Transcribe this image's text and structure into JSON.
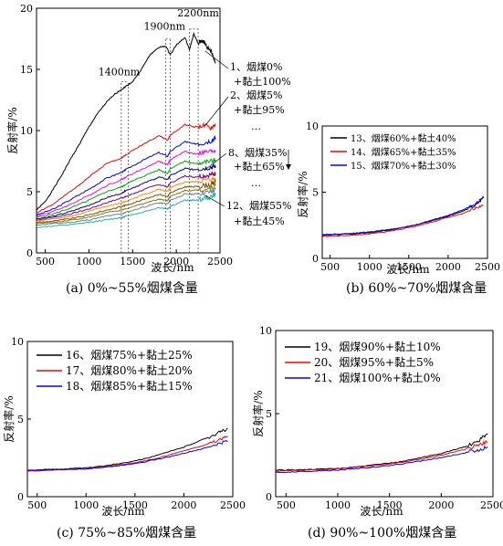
{
  "chart_data": [
    {
      "type": "line",
      "caption": "(a) 0%~55%烟煤含量",
      "xlabel": "波长/nm",
      "ylabel": "反射率/%",
      "xlim": [
        400,
        2500
      ],
      "ylim": [
        0,
        20
      ],
      "xticks": [
        500,
        1000,
        1500,
        2000,
        2500
      ],
      "yticks": [
        0,
        5,
        10,
        15,
        20
      ],
      "peak_labels": [
        "1400nm",
        "1900nm",
        "2200nm"
      ],
      "labels": [
        "1、烟煤0%",
        "+黏土100%",
        "2、烟煤5%",
        "+黏土95%",
        "…",
        "8、烟煤35%",
        "+黏土65%",
        "…",
        "12、烟煤55%",
        "+黏土45%"
      ],
      "series": [
        {
          "color": "#000000",
          "x": [
            400,
            500,
            600,
            700,
            800,
            900,
            1000,
            1100,
            1200,
            1300,
            1380,
            1420,
            1500,
            1600,
            1700,
            1800,
            1880,
            1930,
            2000,
            2100,
            2150,
            2200,
            2250,
            2300,
            2350,
            2400,
            2450
          ],
          "y": [
            3.5,
            4.2,
            5.3,
            6.5,
            7.8,
            9.0,
            10.3,
            11.4,
            12.3,
            13.0,
            13.4,
            13.6,
            14.0,
            15.0,
            16.2,
            16.8,
            16.9,
            16.2,
            17.0,
            17.6,
            16.6,
            17.9,
            17.1,
            17.4,
            16.8,
            16.5,
            15.5
          ]
        },
        {
          "color": "#ff0000",
          "x": [
            400,
            600,
            800,
            1000,
            1200,
            1380,
            1420,
            1600,
            1800,
            1900,
            1930,
            2100,
            2200,
            2300,
            2400,
            2450
          ],
          "y": [
            3.3,
            4.0,
            5.1,
            6.2,
            7.3,
            7.8,
            8.0,
            8.8,
            9.6,
            9.2,
            9.6,
            10.5,
            10.3,
            10.4,
            10.2,
            10.5
          ]
        },
        {
          "color": "#0000ff",
          "x": [
            400,
            600,
            800,
            1000,
            1200,
            1380,
            1420,
            1600,
            1800,
            1900,
            1930,
            2100,
            2200,
            2300,
            2400,
            2450
          ],
          "y": [
            3.1,
            3.6,
            4.4,
            5.2,
            6.1,
            6.6,
            6.8,
            7.5,
            8.2,
            7.9,
            8.3,
            9.1,
            8.9,
            9.0,
            9.2,
            9.4
          ]
        },
        {
          "color": "#ff00ff",
          "x": [
            400,
            600,
            800,
            1000,
            1200,
            1380,
            1420,
            1600,
            1800,
            1900,
            1930,
            2100,
            2200,
            2300,
            2400,
            2450
          ],
          "y": [
            3.0,
            3.4,
            4.0,
            4.7,
            5.5,
            6.0,
            6.2,
            6.8,
            7.5,
            7.2,
            7.6,
            8.3,
            8.1,
            8.2,
            8.3,
            8.4
          ]
        },
        {
          "color": "#00aa00",
          "x": [
            400,
            600,
            800,
            1000,
            1200,
            1380,
            1420,
            1600,
            1800,
            1900,
            1930,
            2100,
            2200,
            2300,
            2400,
            2450
          ],
          "y": [
            2.9,
            3.2,
            3.7,
            4.3,
            5.0,
            5.4,
            5.6,
            6.2,
            6.8,
            6.5,
            6.9,
            7.5,
            7.3,
            7.4,
            7.5,
            7.6
          ]
        },
        {
          "color": "#00008b",
          "x": [
            400,
            600,
            800,
            1000,
            1200,
            1380,
            1420,
            1600,
            1800,
            1900,
            1930,
            2100,
            2200,
            2300,
            2400,
            2450
          ],
          "y": [
            2.8,
            3.0,
            3.4,
            3.9,
            4.5,
            4.9,
            5.1,
            5.6,
            6.2,
            6.0,
            6.3,
            6.9,
            6.8,
            6.9,
            7.0,
            7.1
          ]
        },
        {
          "color": "#800080",
          "x": [
            400,
            600,
            800,
            1000,
            1200,
            1380,
            1420,
            1600,
            1800,
            1900,
            1930,
            2100,
            2200,
            2300,
            2400,
            2450
          ],
          "y": [
            2.7,
            2.9,
            3.2,
            3.6,
            4.1,
            4.5,
            4.6,
            5.1,
            5.6,
            5.4,
            5.7,
            6.3,
            6.2,
            6.3,
            6.4,
            6.5
          ]
        },
        {
          "color": "#ff8c00",
          "x": [
            400,
            600,
            800,
            1000,
            1200,
            1380,
            1420,
            1600,
            1800,
            1900,
            1930,
            2100,
            2200,
            2300,
            2400,
            2450
          ],
          "y": [
            2.6,
            2.8,
            3.0,
            3.4,
            3.8,
            4.1,
            4.2,
            4.7,
            5.2,
            5.0,
            5.3,
            5.8,
            5.8,
            5.9,
            6.0,
            6.1
          ]
        },
        {
          "color": "#8b4513",
          "x": [
            400,
            600,
            800,
            1000,
            1200,
            1380,
            1420,
            1600,
            1800,
            1900,
            1930,
            2100,
            2200,
            2300,
            2400,
            2450
          ],
          "y": [
            2.5,
            2.6,
            2.8,
            3.1,
            3.5,
            3.8,
            3.9,
            4.3,
            4.8,
            4.6,
            4.9,
            5.4,
            5.4,
            5.5,
            5.6,
            5.8
          ]
        },
        {
          "color": "#808000",
          "x": [
            400,
            600,
            800,
            1000,
            1200,
            1380,
            1420,
            1600,
            1800,
            1900,
            1930,
            2100,
            2200,
            2300,
            2400,
            2450
          ],
          "y": [
            2.4,
            2.5,
            2.7,
            2.9,
            3.3,
            3.5,
            3.6,
            4.0,
            4.4,
            4.3,
            4.6,
            5.1,
            5.1,
            5.2,
            5.3,
            5.5
          ]
        },
        {
          "color": "#708090",
          "x": [
            400,
            600,
            800,
            1000,
            1200,
            1380,
            1420,
            1600,
            1800,
            1900,
            1930,
            2100,
            2200,
            2300,
            2400,
            2450
          ],
          "y": [
            2.3,
            2.4,
            2.5,
            2.7,
            3.0,
            3.2,
            3.3,
            3.7,
            4.1,
            4.0,
            4.3,
            4.8,
            4.8,
            4.9,
            5.0,
            5.2
          ]
        },
        {
          "color": "#20b2aa",
          "x": [
            400,
            600,
            800,
            1000,
            1200,
            1380,
            1420,
            1600,
            1800,
            1900,
            1930,
            2100,
            2200,
            2300,
            2400,
            2450
          ],
          "y": [
            2.1,
            2.2,
            2.3,
            2.5,
            2.7,
            2.9,
            3.0,
            3.3,
            3.7,
            3.6,
            3.8,
            4.3,
            4.3,
            4.4,
            4.6,
            4.8
          ]
        }
      ]
    },
    {
      "type": "line",
      "caption": "(b) 60%~70%烟煤含量",
      "xlabel": "波长/nm",
      "ylabel": "反射率/%",
      "xlim": [
        400,
        2500
      ],
      "ylim": [
        0,
        10
      ],
      "xticks": [
        500,
        1000,
        1500,
        2000,
        2500
      ],
      "yticks": [
        0,
        5,
        10
      ],
      "series": [
        {
          "name": "13、烟煤60%+黏土40%",
          "color": "#000000",
          "x": [
            400,
            600,
            800,
            1000,
            1200,
            1400,
            1600,
            1800,
            2000,
            2200,
            2350,
            2450
          ],
          "y": [
            1.75,
            1.8,
            1.85,
            1.95,
            2.1,
            2.3,
            2.55,
            2.85,
            3.2,
            3.6,
            4.0,
            4.6
          ]
        },
        {
          "name": "14、烟煤65%+黏土35%",
          "color": "#ff0000",
          "x": [
            400,
            600,
            800,
            1000,
            1200,
            1400,
            1600,
            1800,
            2000,
            2200,
            2350,
            2450
          ],
          "y": [
            1.65,
            1.7,
            1.75,
            1.85,
            2.0,
            2.2,
            2.45,
            2.75,
            3.1,
            3.4,
            3.8,
            4.0
          ]
        },
        {
          "name": "15、烟煤70%+黏土30%",
          "color": "#0000ff",
          "x": [
            400,
            600,
            800,
            1000,
            1200,
            1400,
            1600,
            1800,
            2000,
            2200,
            2350,
            2450
          ],
          "y": [
            1.8,
            1.85,
            1.9,
            2.0,
            2.15,
            2.3,
            2.55,
            2.9,
            3.25,
            3.7,
            4.1,
            4.7
          ]
        }
      ]
    },
    {
      "type": "line",
      "caption": "(c) 75%~85%烟煤含量",
      "xlabel": "波长/nm",
      "ylabel": "反射率/%",
      "xlim": [
        400,
        2500
      ],
      "ylim": [
        0,
        10
      ],
      "xticks": [
        500,
        1000,
        1500,
        2000,
        2500
      ],
      "yticks": [
        0,
        5,
        10
      ],
      "series": [
        {
          "name": "16、烟煤75%+黏土25%",
          "color": "#000000",
          "x": [
            400,
            600,
            800,
            1000,
            1200,
            1400,
            1600,
            1800,
            2000,
            2200,
            2350,
            2450
          ],
          "y": [
            1.7,
            1.75,
            1.8,
            1.85,
            2.0,
            2.2,
            2.45,
            2.8,
            3.2,
            3.7,
            4.1,
            4.4
          ]
        },
        {
          "name": "17、烟煤80%+黏土20%",
          "color": "#ff0000",
          "x": [
            400,
            600,
            800,
            1000,
            1200,
            1400,
            1600,
            1800,
            2000,
            2200,
            2350,
            2450
          ],
          "y": [
            1.65,
            1.7,
            1.75,
            1.8,
            1.95,
            2.1,
            2.3,
            2.6,
            2.95,
            3.3,
            3.6,
            3.9
          ]
        },
        {
          "name": "18、烟煤85%+黏土15%",
          "color": "#0000ff",
          "x": [
            400,
            600,
            800,
            1000,
            1200,
            1400,
            1600,
            1800,
            2000,
            2200,
            2350,
            2450
          ],
          "y": [
            1.7,
            1.72,
            1.75,
            1.8,
            1.9,
            2.05,
            2.25,
            2.5,
            2.8,
            3.1,
            3.4,
            3.6
          ]
        }
      ]
    },
    {
      "type": "line",
      "caption": "(d) 90%~100%烟煤含量",
      "xlabel": "波长/nm",
      "ylabel": "反射率/%",
      "xlim": [
        400,
        2500
      ],
      "ylim": [
        0,
        10
      ],
      "xticks": [
        500,
        1000,
        1500,
        2000,
        2500
      ],
      "yticks": [
        0,
        5,
        10
      ],
      "series": [
        {
          "name": "19、烟煤90%+黏土10%",
          "color": "#000000",
          "x": [
            400,
            600,
            800,
            1000,
            1200,
            1400,
            1600,
            1800,
            2000,
            2200,
            2350,
            2450
          ],
          "y": [
            1.6,
            1.62,
            1.65,
            1.7,
            1.8,
            1.95,
            2.1,
            2.35,
            2.6,
            2.95,
            3.3,
            3.8
          ]
        },
        {
          "name": "20、烟煤95%+黏土5%",
          "color": "#ff0000",
          "x": [
            400,
            600,
            800,
            1000,
            1200,
            1400,
            1600,
            1800,
            2000,
            2200,
            2350,
            2450
          ],
          "y": [
            1.55,
            1.58,
            1.62,
            1.67,
            1.77,
            1.9,
            2.05,
            2.25,
            2.5,
            2.8,
            3.1,
            3.3
          ]
        },
        {
          "name": "21、烟煤100%+黏土0%",
          "color": "#0000ff",
          "x": [
            400,
            600,
            800,
            1000,
            1200,
            1400,
            1600,
            1800,
            2000,
            2200,
            2350,
            2450
          ],
          "y": [
            1.45,
            1.5,
            1.55,
            1.6,
            1.7,
            1.8,
            1.95,
            2.15,
            2.35,
            2.6,
            2.8,
            3.0
          ]
        }
      ]
    }
  ]
}
